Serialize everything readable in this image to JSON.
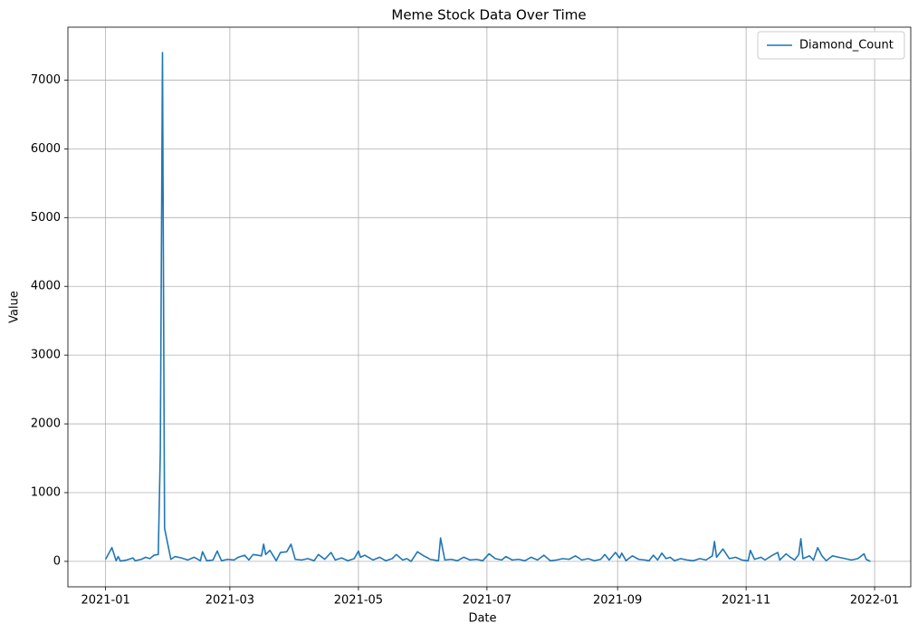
{
  "chart_data": {
    "type": "line",
    "title": "Meme Stock Data Over Time",
    "x_label": "Date",
    "y_label": "Value",
    "x": [
      2021.0,
      2021.0082,
      2021.0137,
      2021.0164,
      2021.0192,
      2021.0274,
      2021.0356,
      2021.0384,
      2021.0466,
      2021.0521,
      2021.0575,
      2021.063,
      2021.0685,
      2021.0712,
      2021.074,
      2021.0767,
      2021.0849,
      2021.0904,
      2021.0986,
      2021.1068,
      2021.1151,
      2021.1233,
      2021.126,
      2021.1315,
      2021.1397,
      2021.1452,
      2021.1507,
      2021.1589,
      2021.1671,
      2021.1726,
      2021.1808,
      2021.1863,
      2021.1918,
      2021.2027,
      2021.2055,
      2021.2082,
      2021.2137,
      2021.2192,
      2021.2219,
      2021.2274,
      2021.2356,
      2021.2411,
      2021.2466,
      2021.2548,
      2021.263,
      2021.2712,
      2021.2767,
      2021.2849,
      2021.2932,
      2021.2986,
      2021.3068,
      2021.3151,
      2021.3233,
      2021.3288,
      2021.3315,
      2021.337,
      2021.3479,
      2021.3562,
      2021.3644,
      2021.3726,
      2021.3781,
      2021.3863,
      2021.3918,
      2021.3973,
      2021.4055,
      2021.4137,
      2021.4192,
      2021.4219,
      2021.4329,
      2021.4356,
      2021.4411,
      2021.4493,
      2021.4575,
      2021.4658,
      2021.474,
      2021.4822,
      2021.4904,
      2021.4986,
      2021.5068,
      2021.5151,
      2021.5205,
      2021.5288,
      2021.537,
      2021.5452,
      2021.5534,
      2021.5616,
      2021.5699,
      2021.5781,
      2021.5863,
      2021.5945,
      2021.6027,
      2021.611,
      2021.6192,
      2021.6274,
      2021.6356,
      2021.6438,
      2021.6493,
      2021.6548,
      2021.663,
      2021.6685,
      2021.6712,
      2021.6767,
      2021.6849,
      2021.6932,
      2021.7014,
      2021.7068,
      2021.7123,
      2021.7178,
      2021.7233,
      2021.7288,
      2021.7342,
      2021.7397,
      2021.7479,
      2021.7562,
      2021.7644,
      2021.7726,
      2021.7808,
      2021.789,
      2021.7918,
      2021.7945,
      2021.8027,
      2021.811,
      2021.8192,
      2021.8274,
      2021.8356,
      2021.8384,
      2021.8438,
      2021.8521,
      2021.8575,
      2021.8658,
      2021.874,
      2021.8767,
      2021.8849,
      2021.8904,
      2021.8959,
      2021.9014,
      2021.9041,
      2021.9068,
      2021.9151,
      2021.9205,
      2021.926,
      2021.9315,
      2021.937,
      2021.9452,
      2021.9534,
      2021.9616,
      2021.9699,
      2021.9781,
      2021.9863,
      2021.989,
      2021.9945
    ],
    "series": [
      {
        "name": "Diamond_Count",
        "color": "#1f77b4",
        "values": [
          30,
          200,
          10,
          70,
          5,
          20,
          50,
          10,
          30,
          60,
          40,
          90,
          100,
          1600,
          7400,
          480,
          30,
          70,
          50,
          20,
          60,
          10,
          140,
          10,
          20,
          150,
          10,
          30,
          20,
          60,
          90,
          20,
          100,
          80,
          250,
          100,
          160,
          60,
          10,
          130,
          140,
          250,
          30,
          20,
          40,
          10,
          100,
          30,
          130,
          20,
          50,
          10,
          40,
          150,
          60,
          90,
          20,
          60,
          10,
          40,
          100,
          20,
          40,
          0,
          140,
          80,
          50,
          30,
          10,
          340,
          20,
          30,
          10,
          60,
          20,
          30,
          10,
          110,
          40,
          20,
          70,
          20,
          30,
          10,
          60,
          20,
          90,
          10,
          20,
          40,
          30,
          80,
          20,
          40,
          10,
          30,
          100,
          20,
          130,
          50,
          120,
          10,
          80,
          30,
          20,
          10,
          90,
          20,
          120,
          40,
          60,
          10,
          40,
          20,
          10,
          40,
          20,
          80,
          290,
          60,
          180,
          40,
          60,
          20,
          10,
          160,
          30,
          60,
          20,
          80,
          130,
          20,
          110,
          60,
          20,
          100,
          330,
          40,
          80,
          20,
          200,
          80,
          10,
          80,
          60,
          40,
          20,
          40,
          110,
          30,
          0
        ]
      }
    ],
    "xlim": [
      2020.951,
      2022.047
    ],
    "xticks": [
      {
        "value": 2021.0,
        "label": "2021-01"
      },
      {
        "value": 2021.1616,
        "label": "2021-03"
      },
      {
        "value": 2021.3288,
        "label": "2021-05"
      },
      {
        "value": 2021.4959,
        "label": "2021-07"
      },
      {
        "value": 2021.6658,
        "label": "2021-09"
      },
      {
        "value": 2021.8329,
        "label": "2021-11"
      },
      {
        "value": 2022.0,
        "label": "2022-01"
      }
    ],
    "ylim": [
      -370,
      7770
    ],
    "yticks": [
      0,
      1000,
      2000,
      3000,
      4000,
      5000,
      6000,
      7000
    ],
    "grid": true,
    "legend": "upper right"
  }
}
